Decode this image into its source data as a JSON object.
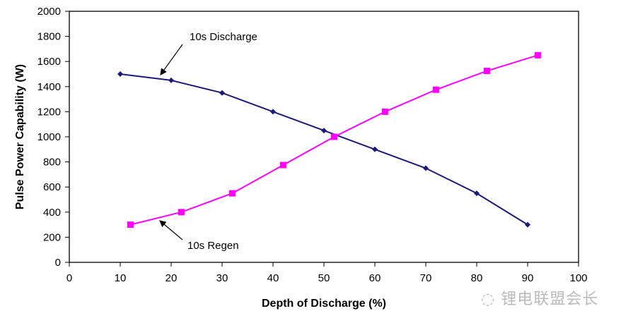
{
  "chart_data": {
    "type": "line",
    "title": "",
    "xlabel": "Depth of Discharge (%)",
    "ylabel": "Pulse Power Capability (W)",
    "xlim": [
      0,
      100
    ],
    "ylim": [
      0,
      2000
    ],
    "xticks": [
      0,
      10,
      20,
      30,
      40,
      50,
      60,
      70,
      80,
      90,
      100
    ],
    "yticks": [
      0,
      200,
      400,
      600,
      800,
      1000,
      1200,
      1400,
      1600,
      1800,
      2000
    ],
    "grid": false,
    "legend": "none",
    "series": [
      {
        "name": "10s Discharge",
        "color": "#1a1a7a",
        "marker": "diamond",
        "x": [
          10,
          20,
          30,
          40,
          50,
          60,
          70,
          80,
          90
        ],
        "y": [
          1500,
          1450,
          1350,
          1200,
          1050,
          900,
          750,
          550,
          300
        ]
      },
      {
        "name": "10s Regen",
        "color": "#ff00ff",
        "marker": "square",
        "x": [
          12,
          22,
          32,
          42,
          52,
          62,
          72,
          82,
          92
        ],
        "y": [
          300,
          400,
          550,
          775,
          1000,
          1200,
          1375,
          1525,
          1650
        ]
      }
    ],
    "annotations": [
      "10s Discharge",
      "10s Regen"
    ]
  },
  "watermark": "锂电联盟会长"
}
